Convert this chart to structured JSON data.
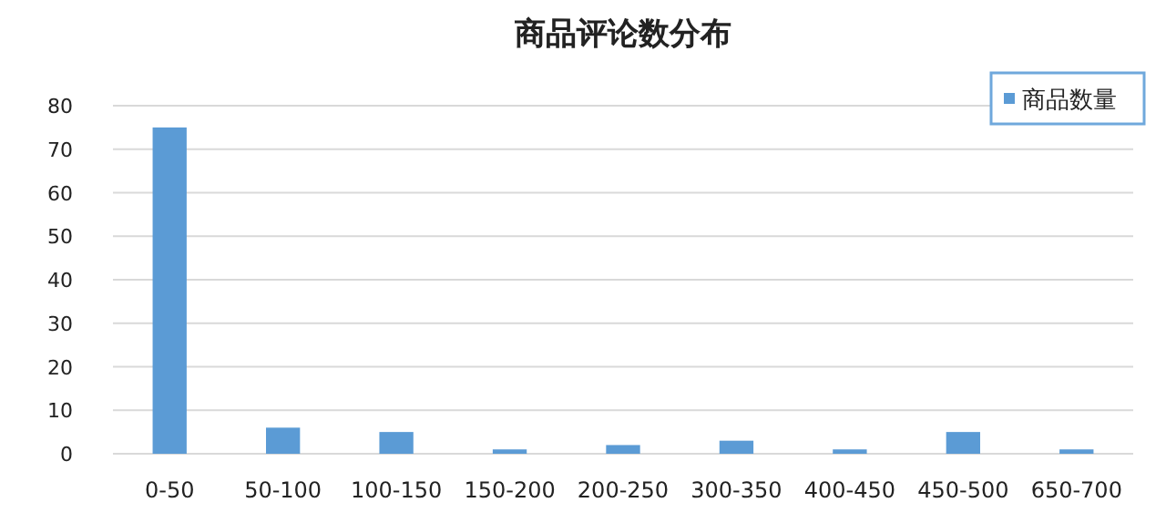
{
  "chart_data": {
    "type": "bar",
    "title": "商品评论数分布",
    "categories": [
      "0-50",
      "50-100",
      "100-150",
      "150-200",
      "200-250",
      "300-350",
      "400-450",
      "450-500",
      "650-700"
    ],
    "series": [
      {
        "name": "商品数量",
        "color": "#5b9bd5",
        "values": [
          75,
          6,
          5,
          1,
          2,
          3,
          1,
          5,
          1
        ]
      }
    ],
    "ylim": [
      0,
      80
    ],
    "yticks": [
      0,
      10,
      20,
      30,
      40,
      50,
      60,
      70,
      80
    ],
    "grid": "y",
    "legend": "top right"
  }
}
